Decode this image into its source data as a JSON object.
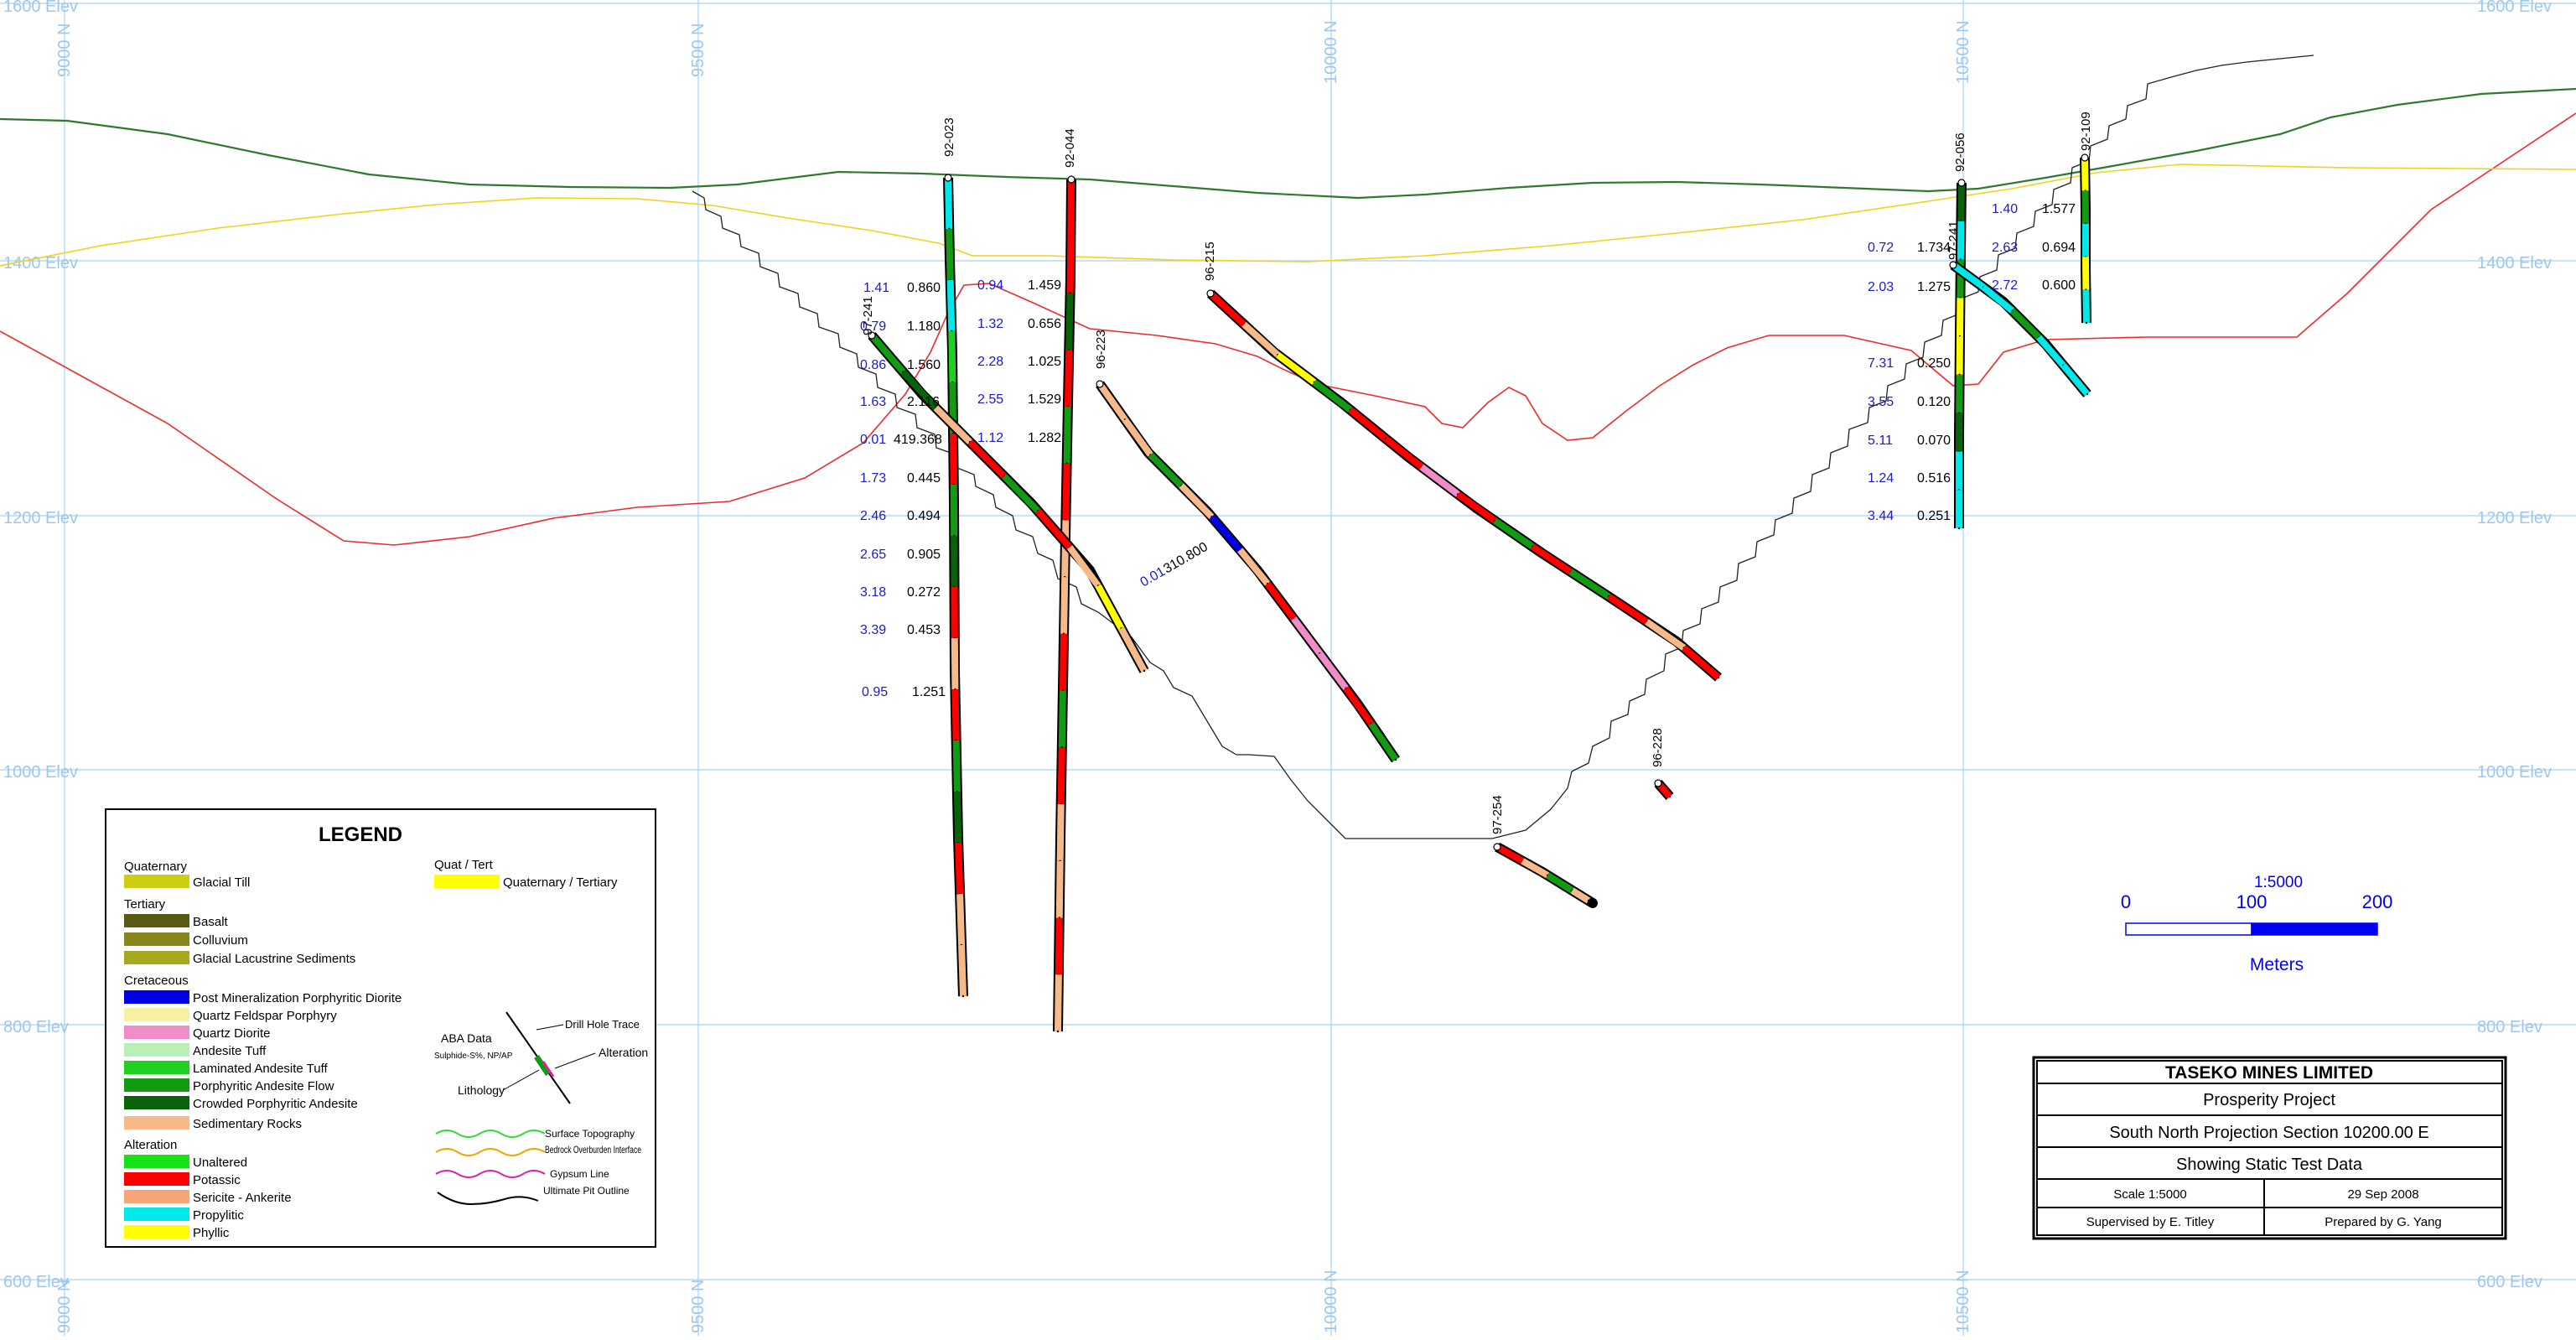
{
  "elev_labels": [
    {
      "text": "1600 Elev",
      "value": 1600
    },
    {
      "text": "1400 Elev",
      "value": 1400
    },
    {
      "text": "1200 Elev",
      "value": 1200
    },
    {
      "text": "1000 Elev",
      "value": 1000
    },
    {
      "text": "800 Elev",
      "value": 800
    },
    {
      "text": "600 Elev",
      "value": 600
    }
  ],
  "north_labels": [
    "9000 N",
    "9500 N",
    "10000 N",
    "10500 N"
  ],
  "holes": [
    {
      "id": "92-023"
    },
    {
      "id": "92-044"
    },
    {
      "id": "97-241"
    },
    {
      "id": "96-215"
    },
    {
      "id": "96-223"
    },
    {
      "id": "97-254"
    },
    {
      "id": "96-228"
    },
    {
      "id": "92-056"
    },
    {
      "id": "97-241"
    },
    {
      "id": "92-109"
    }
  ],
  "aba_left": [
    {
      "np": "1.41",
      "ap": "0.860"
    },
    {
      "np": "0.79",
      "ap": "1.180"
    },
    {
      "np": "0.86",
      "ap": "1.560"
    },
    {
      "np": "1.63",
      "ap": "2.116"
    },
    {
      "np": "0.01",
      "ap": "419.368"
    },
    {
      "np": "1.73",
      "ap": "0.445"
    },
    {
      "np": "2.46",
      "ap": "0.494"
    },
    {
      "np": "2.65",
      "ap": "0.905"
    },
    {
      "np": "3.18",
      "ap": "0.272"
    },
    {
      "np": "3.39",
      "ap": "0.453"
    },
    {
      "np": "0.95",
      "ap": "1.251"
    }
  ],
  "aba_mid": [
    {
      "np": "0.94",
      "ap": "1.459"
    },
    {
      "np": "1.32",
      "ap": "0.656"
    },
    {
      "np": "2.28",
      "ap": "1.025"
    },
    {
      "np": "2.55",
      "ap": "1.529"
    },
    {
      "np": "1.12",
      "ap": "1.282"
    }
  ],
  "aba_223": {
    "np": "0.01",
    "ap": "310.800"
  },
  "aba_right1": [
    {
      "np": "0.72",
      "ap": "1.734"
    },
    {
      "np": "2.03",
      "ap": "1.275"
    },
    {
      "np": "7.31",
      "ap": "0.250"
    },
    {
      "np": "3.55",
      "ap": "0.120"
    },
    {
      "np": "5.11",
      "ap": "0.070"
    },
    {
      "np": "1.24",
      "ap": "0.516"
    },
    {
      "np": "3.44",
      "ap": "0.251"
    }
  ],
  "aba_right2": [
    {
      "np": "1.40",
      "ap": "1.577"
    },
    {
      "np": "2.63",
      "ap": "0.694"
    },
    {
      "np": "2.72",
      "ap": "0.600"
    }
  ],
  "legend": {
    "title": "LEGEND",
    "groups": [
      {
        "heading": "Quaternary",
        "items": [
          {
            "label": "Glacial Till",
            "color": "#cdcd12"
          }
        ]
      },
      {
        "heading": "Tertiary",
        "items": [
          {
            "label": "Basalt",
            "color": "#5a5a12"
          },
          {
            "label": "Colluvium",
            "color": "#86861c"
          },
          {
            "label": "Glacial Lacustrine Sediments",
            "color": "#a8a820"
          }
        ]
      },
      {
        "heading": "Cretaceous",
        "items": [
          {
            "label": "Post Mineralization Porphyritic Diorite",
            "color": "#0000e6"
          },
          {
            "label": "Quartz Feldspar Porphyry",
            "color": "#f7f2a2"
          },
          {
            "label": "Quartz Diorite",
            "color": "#f08cc8"
          },
          {
            "label": "Andesite Tuff",
            "color": "#b8f0b8"
          },
          {
            "label": "Laminated Andesite Tuff",
            "color": "#20d020"
          },
          {
            "label": "Porphyritic Andesite Flow",
            "color": "#139a13"
          },
          {
            "label": "Crowded Porphyritic Andesite",
            "color": "#0a620a"
          },
          {
            "label": "Sedimentary Rocks",
            "color": "#f5b98a"
          }
        ]
      },
      {
        "heading": "Alteration",
        "items": [
          {
            "label": "Unaltered",
            "color": "#16e016"
          },
          {
            "label": "Potassic",
            "color": "#ff0000"
          },
          {
            "label": "Sericite - Ankerite",
            "color": "#f7a478"
          },
          {
            "label": "Propylitic",
            "color": "#00e8e8"
          },
          {
            "label": "Phyllic",
            "color": "#ffff00"
          }
        ]
      }
    ],
    "quat_tert_heading": "Quat / Tert",
    "quat_tert_item": {
      "label": "Quaternary / Tertiary",
      "color": "#ffff00"
    },
    "aba_title": "ABA Data",
    "aba_sub": "Sulphide-S%, NP/AP",
    "drill_hole_trace": "Drill Hole Trace",
    "alteration": "Alteration",
    "lithology": "Lithology",
    "lines": [
      {
        "label": "Surface Topography",
        "color": "#33dd33"
      },
      {
        "label": "Bedrock Overburden Interface",
        "color": "#f0a500"
      },
      {
        "label": "Gypsum Line",
        "color": "#dd22aa"
      },
      {
        "label": "Ultimate Pit Outline",
        "color": "#000000"
      }
    ]
  },
  "scale_bar": {
    "ratio": "1:5000",
    "ticks": [
      "0",
      "100",
      "200"
    ],
    "unit": "Meters",
    "color": "#0000ee"
  },
  "title_block": {
    "company": "TASEKO MINES LIMITED",
    "project": "Prosperity Project",
    "section": "South North Projection Section 10200.00 E",
    "subject": "Showing Static Test Data",
    "scale": "Scale 1:5000",
    "date": "29 Sep 2008",
    "supervised": "Supervised by E. Titley",
    "prepared": "Prepared by G. Yang"
  },
  "colors": {
    "grid": "#a9d1f5",
    "topography": "#2f7a2f",
    "overburden": "#f2d21a",
    "gypsum": "#ee2a2a",
    "pit": "#222222"
  }
}
